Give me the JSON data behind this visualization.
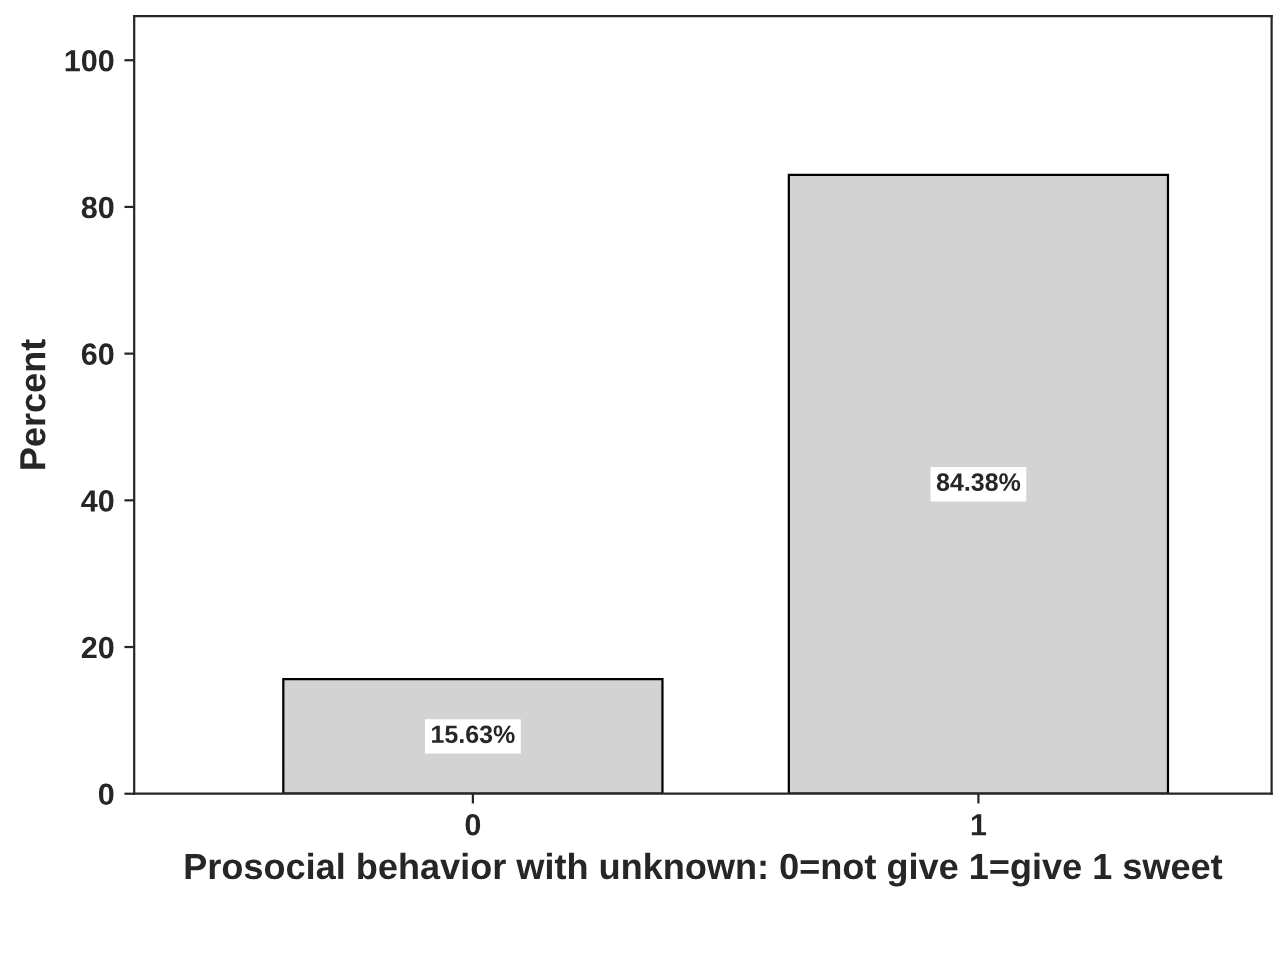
{
  "chart_data": {
    "type": "bar",
    "xlabel": "Prosocial behavior with unknown: 0=not give 1=give 1 sweet",
    "ylabel": "Percent",
    "categories": [
      "0",
      "1"
    ],
    "values": [
      15.63,
      84.38
    ],
    "color": "#d3d3d3",
    "value_labels": [
      "15.63%",
      "84.38%"
    ],
    "ylim": [
      0,
      106
    ],
    "yticks": [
      0,
      20,
      40,
      60,
      80,
      100
    ],
    "grid": false,
    "legend": false
  }
}
